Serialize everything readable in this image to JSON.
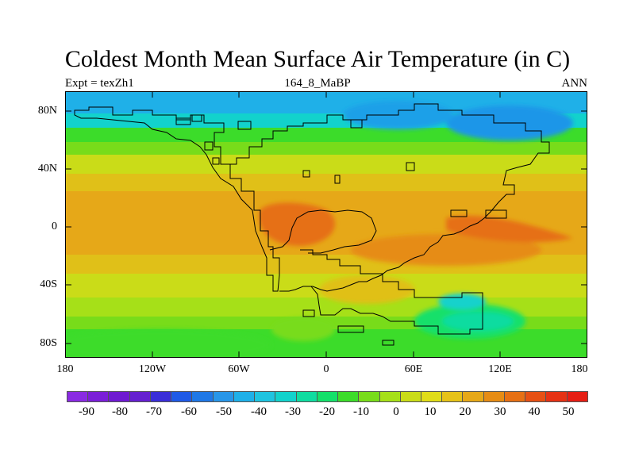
{
  "header": {
    "title": "Coldest Month Mean Surface Air Temperature (in C)",
    "left": "Expt = texZh1",
    "center": "164_8_MaBP",
    "right": "ANN"
  },
  "axes": {
    "lat_ticks": [
      "80N",
      "40N",
      "0",
      "40S",
      "80S"
    ],
    "lon_ticks": [
      "180",
      "120W",
      "60W",
      "0",
      "60E",
      "120E",
      "180"
    ]
  },
  "colorbar": {
    "colors": [
      "#8a2be2",
      "#7b1fd8",
      "#6f1ad1",
      "#6520d0",
      "#3a2ed8",
      "#1f5ae6",
      "#1f78e6",
      "#2896e8",
      "#1fb0e8",
      "#1fc4e0",
      "#12d2cc",
      "#10dca0",
      "#14e06a",
      "#3cdc2a",
      "#78dc1a",
      "#a6e018",
      "#cadc18",
      "#e0dc18",
      "#e6c218",
      "#e6a818",
      "#e68c14",
      "#e67014",
      "#e65014",
      "#e63214",
      "#e61e14"
    ],
    "labels": [
      "-90",
      "-80",
      "-70",
      "-60",
      "-50",
      "-40",
      "-30",
      "-20",
      "-10",
      "0",
      "10",
      "20",
      "30",
      "40",
      "50"
    ]
  }
}
